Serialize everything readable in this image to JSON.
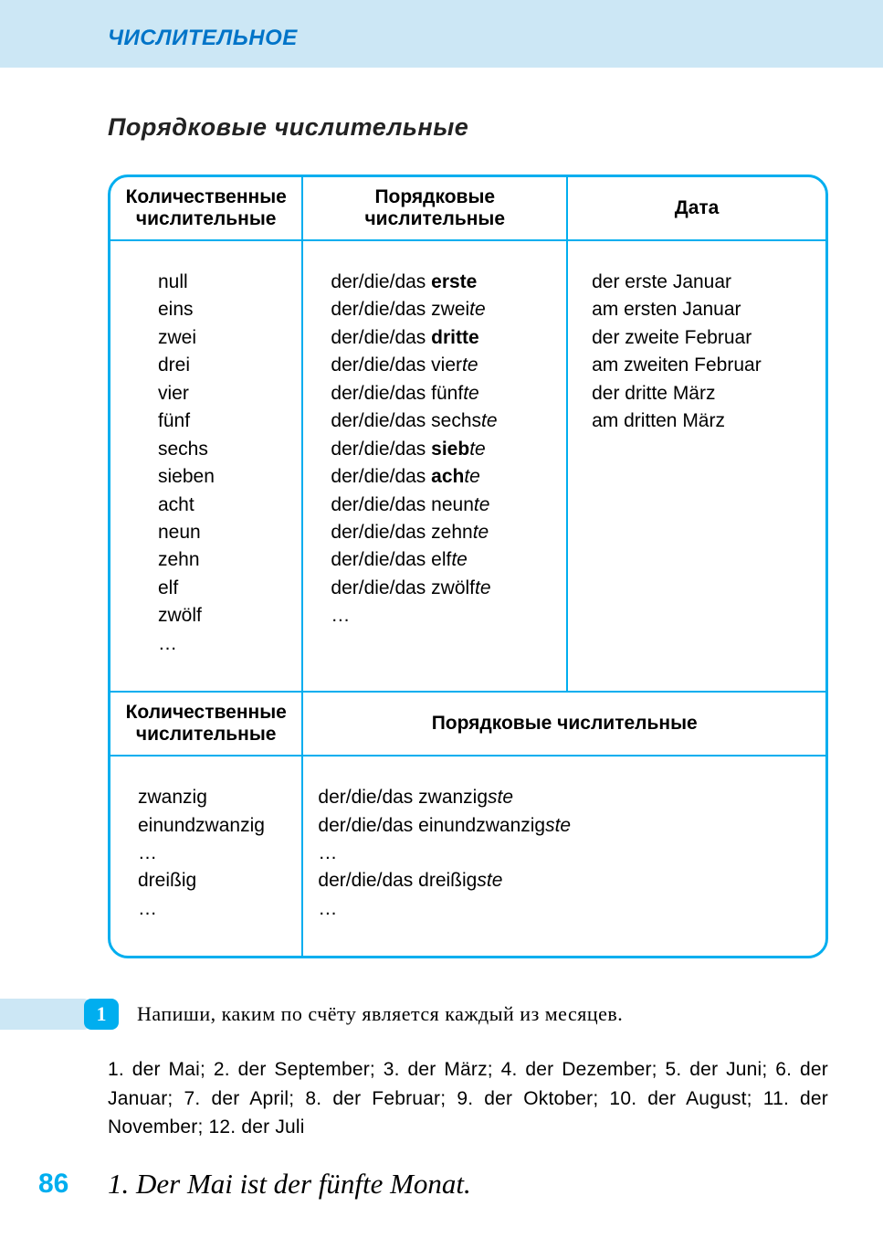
{
  "colors": {
    "band_bg": "#cce7f5",
    "accent": "#00aeef",
    "title": "#0074c8",
    "text": "#222222",
    "page_bg": "#ffffff"
  },
  "typography": {
    "body_family": "Arial, Helvetica, sans-serif",
    "serif_family": "Georgia, 'Times New Roman', serif",
    "script_family": "'Brush Script MT', 'Segoe Script', cursive",
    "header_size_pt": 18,
    "section_size_pt": 20,
    "body_size_pt": 16
  },
  "header": {
    "title": "ЧИСЛИТЕЛЬНОЕ"
  },
  "section": {
    "title": "Порядковые числительные"
  },
  "table1": {
    "headers": {
      "col1": "Количественные числительные",
      "col2": "Порядковые числительные",
      "col3": "Дата"
    },
    "cardinals": [
      "null",
      "eins",
      "zwei",
      "drei",
      "vier",
      "fünf",
      "sechs",
      "sieben",
      "acht",
      "neun",
      "zehn",
      "elf",
      "zwölf",
      "…"
    ],
    "ordinals": [
      {
        "prefix": "der/die/das ",
        "root": "erste",
        "bold": true,
        "suffix": ""
      },
      {
        "prefix": "der/die/das ",
        "root": "zwei",
        "suffix": "te"
      },
      {
        "prefix": "der/die/das ",
        "root": "dritte",
        "bold": true,
        "suffix": ""
      },
      {
        "prefix": "der/die/das ",
        "root": "vier",
        "suffix": "te"
      },
      {
        "prefix": "der/die/das ",
        "root": "fünf",
        "suffix": "te"
      },
      {
        "prefix": "der/die/das ",
        "root": "sechs",
        "suffix": "te"
      },
      {
        "prefix": "der/die/das ",
        "root": "sieb",
        "bold": true,
        "suffix": "te"
      },
      {
        "prefix": "der/die/das ",
        "root": "ach",
        "bold": true,
        "suffix": "te"
      },
      {
        "prefix": "der/die/das ",
        "root": "neun",
        "suffix": "te"
      },
      {
        "prefix": "der/die/das ",
        "root": "zehn",
        "suffix": "te"
      },
      {
        "prefix": "der/die/das ",
        "root": "elf",
        "suffix": "te"
      },
      {
        "prefix": "der/die/das ",
        "root": "zwölf",
        "suffix": "te"
      },
      {
        "prefix": "…",
        "root": "",
        "suffix": ""
      }
    ],
    "dates": [
      "der erste Januar",
      "am ersten Januar",
      "der zweite Februar",
      "am zweiten Februar",
      "der dritte März",
      "am dritten März"
    ]
  },
  "table2": {
    "headers": {
      "col1": "Количественные числительные",
      "col2merged": "Порядковые числительные"
    },
    "cardinals": [
      "zwanzig",
      "einundzwanzig",
      "…",
      "dreißig",
      "…"
    ],
    "ordinals": [
      {
        "prefix": "der/die/das ",
        "root": "zwanzig",
        "suffix": "ste"
      },
      {
        "prefix": "der/die/das ",
        "root": "einundzwanzig",
        "suffix": "ste"
      },
      {
        "prefix": "…",
        "root": "",
        "suffix": ""
      },
      {
        "prefix": "der/die/das ",
        "root": "dreißig",
        "suffix": "ste"
      },
      {
        "prefix": "…",
        "root": "",
        "suffix": ""
      }
    ]
  },
  "exercise": {
    "number": "1",
    "prompt": "Напиши, каким по счёту является каждый из месяцев.",
    "items": "1. der Mai; 2. der September; 3. der März; 4. der Dezember; 5. der Juni; 6. der Januar; 7. der April; 8. der Februar; 9. der Oktober; 10. der August; 11. der November; 12. der Juli",
    "example": "1. Der Mai ist der fünfte Monat."
  },
  "page_number": "86"
}
